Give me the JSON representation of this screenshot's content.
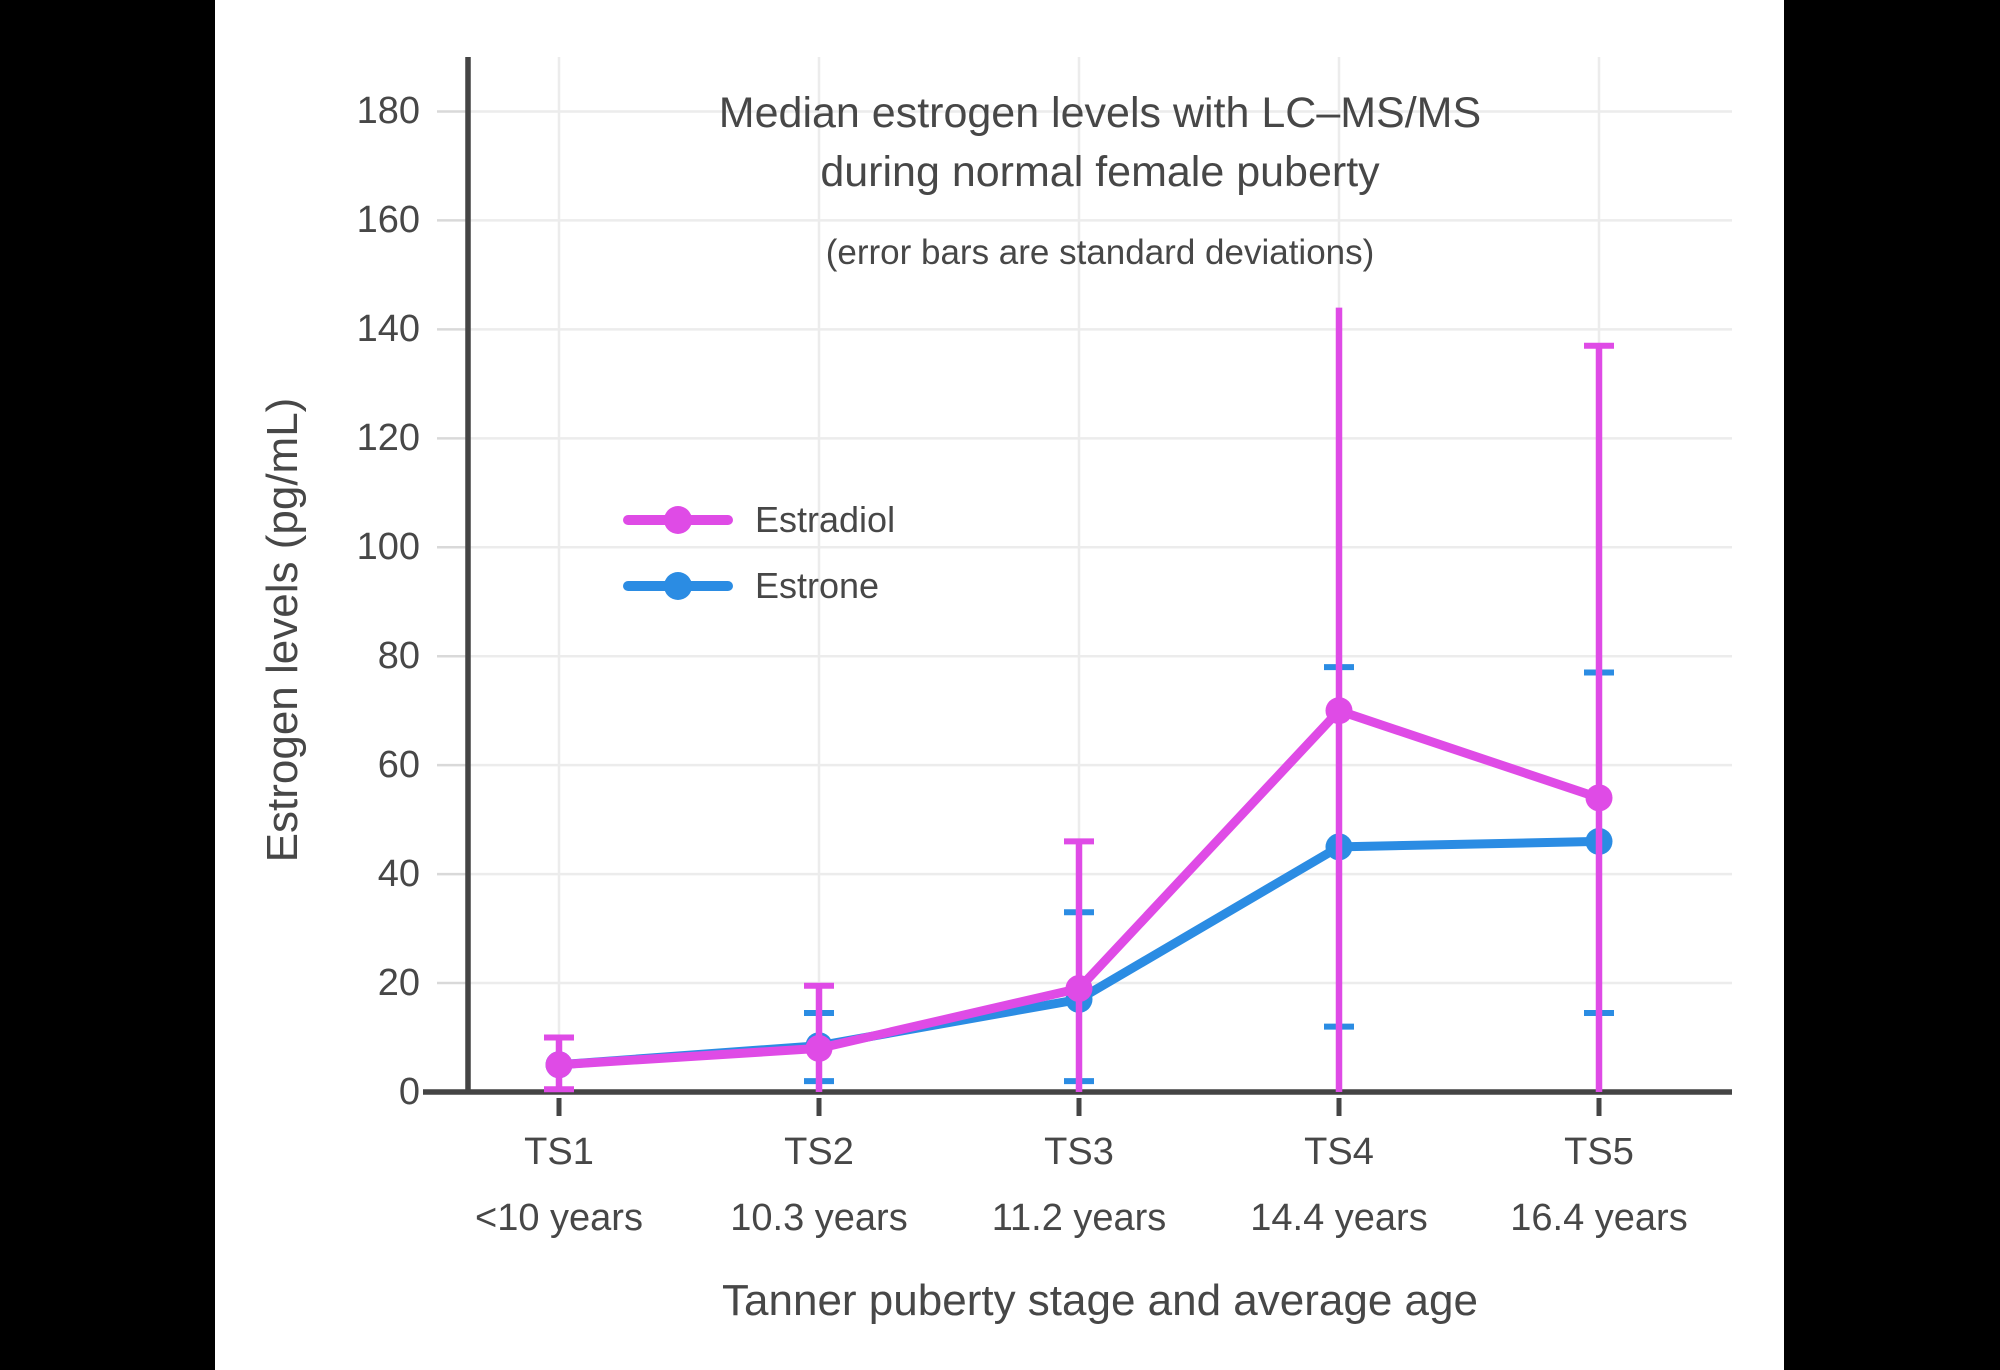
{
  "window": {
    "background": "#000000",
    "panel_background": "#ffffff"
  },
  "title": {
    "line1": "Median estrogen levels with LC–MS/MS",
    "line2": "during normal female puberty",
    "subtitle": "(error bars are standard deviations)"
  },
  "y_axis": {
    "title": "Estrogen levels (pg/mL)",
    "tick_values": [
      0,
      20,
      40,
      60,
      80,
      100,
      120,
      140,
      160,
      180
    ],
    "tick_labels": [
      "0",
      "20",
      "40",
      "60",
      "80",
      "100",
      "120",
      "140",
      "160",
      "180"
    ]
  },
  "x_axis": {
    "title": "Tanner puberty stage and average age",
    "stages": [
      "TS1",
      "TS2",
      "TS3",
      "TS4",
      "TS5"
    ],
    "ages": [
      "<10 years",
      "10.3 years",
      "11.2 years",
      "14.4 years",
      "16.4 years"
    ]
  },
  "legend": {
    "items": [
      {
        "label": "Estradiol",
        "color": "#df4be6"
      },
      {
        "label": "Estrone",
        "color": "#2b8ce3"
      }
    ]
  },
  "colors": {
    "grid": "#ececec",
    "tick_stub": "#d9d9d9",
    "axis": "#444444",
    "text": "#474747",
    "estradiol": "#df4be6",
    "estrone": "#2b8ce3"
  },
  "chart_data": {
    "type": "line",
    "title": "Median estrogen levels with LC–MS/MS during normal female puberty",
    "subtitle": "(error bars are standard deviations)",
    "xlabel": "Tanner puberty stage and average age",
    "ylabel": "Estrogen levels (pg/mL)",
    "ylim": [
      0,
      190
    ],
    "ytick_step": 20,
    "grid": true,
    "legend_position": "inside-upper-left",
    "categories": [
      "TS1 (<10 years)",
      "TS2 (10.3 years)",
      "TS3 (11.2 years)",
      "TS4 (14.4 years)",
      "TS5 (16.4 years)"
    ],
    "series": [
      {
        "name": "Estrone",
        "color": "#2b8ce3",
        "values": [
          5,
          8.5,
          17,
          45,
          46
        ],
        "error_bars": [
          null,
          {
            "lo": 2,
            "hi": 14.5,
            "cap_lo": true,
            "cap_hi": true
          },
          {
            "lo": 2,
            "hi": 33,
            "cap_lo": true,
            "cap_hi": true
          },
          {
            "lo": 12,
            "hi": 78,
            "cap_lo": true,
            "cap_hi": true
          },
          {
            "lo": 14.5,
            "hi": 77,
            "cap_lo": true,
            "cap_hi": true
          }
        ]
      },
      {
        "name": "Estradiol",
        "color": "#df4be6",
        "values": [
          5,
          8,
          19,
          70,
          54
        ],
        "error_bars": [
          {
            "lo": 0.5,
            "hi": 10,
            "cap_lo": true,
            "cap_hi": true
          },
          {
            "lo": 0,
            "hi": 19.5,
            "cap_lo": false,
            "cap_hi": true
          },
          {
            "lo": 0,
            "hi": 46,
            "cap_lo": false,
            "cap_hi": true
          },
          {
            "lo": 0,
            "hi": 144,
            "cap_lo": false,
            "cap_hi": false
          },
          {
            "lo": 0,
            "hi": 137,
            "cap_lo": false,
            "cap_hi": true
          }
        ]
      }
    ],
    "draw_order": [
      "Estrone",
      "Estradiol"
    ]
  }
}
